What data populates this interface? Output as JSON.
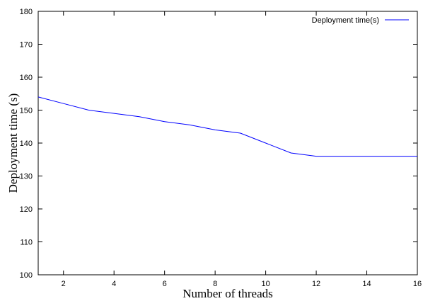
{
  "chart_data": {
    "type": "line",
    "title": "",
    "xlabel": "Number of threads",
    "ylabel": "Deployment time (s)",
    "xlim": [
      1,
      16
    ],
    "ylim": [
      100,
      180
    ],
    "xticks": [
      2,
      4,
      6,
      8,
      10,
      12,
      14,
      16
    ],
    "yticks": [
      100,
      110,
      120,
      130,
      140,
      150,
      160,
      170,
      180
    ],
    "xtick_labels": [
      "2",
      "4",
      "6",
      "8",
      "10",
      "12",
      "14",
      "16"
    ],
    "ytick_labels": [
      "100",
      "110",
      "120",
      "130",
      "140",
      "150",
      "160",
      "170",
      "180"
    ],
    "grid": false,
    "legend_position": "top-right",
    "series": [
      {
        "name": "Deployment time(s)",
        "color": "#0000ff",
        "x": [
          1,
          2,
          3,
          4,
          5,
          6,
          7,
          8,
          9,
          10,
          11,
          12,
          13,
          14,
          15,
          16
        ],
        "y": [
          154,
          152,
          150,
          149,
          148,
          146.5,
          145.5,
          144,
          143,
          140,
          137,
          136,
          136,
          136,
          136,
          136
        ]
      }
    ]
  }
}
